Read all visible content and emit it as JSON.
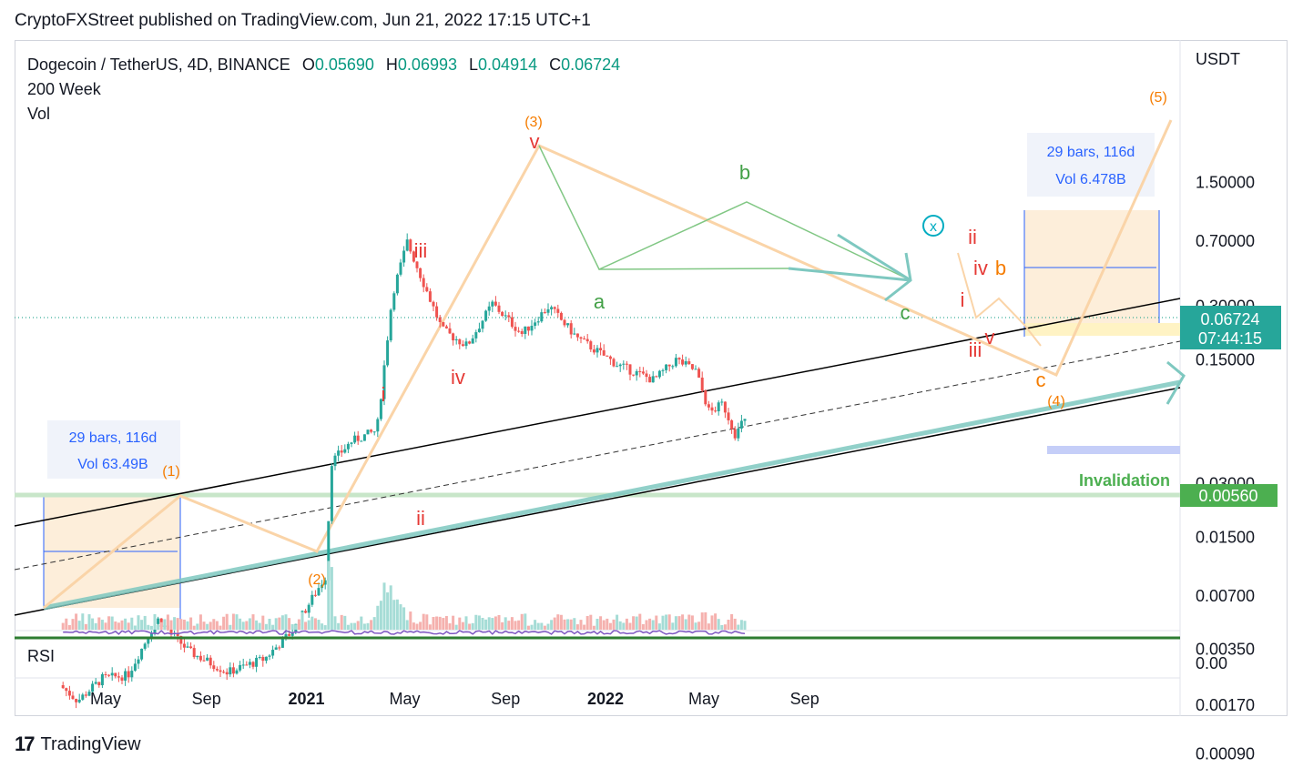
{
  "header": {
    "published": "CryptoFXStreet published on TradingView.com, Jun 21, 2022 17:15 UTC+1"
  },
  "legend": {
    "symbol": "Dogecoin / TetherUS, 4D, BINANCE",
    "open_key": "O",
    "open": "0.05690",
    "high_key": "H",
    "high": "0.06993",
    "low_key": "L",
    "low": "0.04914",
    "close_key": "C",
    "close": "0.06724",
    "ma_label": "200 Week",
    "vol_label": "Vol"
  },
  "rsi_label": "RSI",
  "footer": {
    "brand": "TradingView"
  },
  "chart_data": {
    "type": "candlestick",
    "log_scale": true,
    "currency": "USDT",
    "x_ticks": [
      "May",
      "Sep",
      "2021",
      "May",
      "Sep",
      "2022",
      "May",
      "Sep"
    ],
    "y_ticks": [
      "1.50000",
      "0.70000",
      "0.30000",
      "0.15000",
      "0.03000",
      "0.01500",
      "0.00700",
      "0.00350",
      "0.00170",
      "0.00090"
    ],
    "rsi_tick": "0.00",
    "last_price": "0.06724",
    "countdown": "07:44:15",
    "invalidation_label": "Invalidation",
    "invalidation_price": "0.00560",
    "measure_boxes": [
      {
        "bars": "29 bars, 116d",
        "vol": "Vol 63.49B"
      },
      {
        "bars": "29 bars, 116d",
        "vol": "Vol 6.478B"
      }
    ],
    "wave_labels": {
      "primary": [
        "(1)",
        "(2)",
        "(3)",
        "(4)",
        "(5)"
      ],
      "minor": [
        "i",
        "ii",
        "iii",
        "iv",
        "v"
      ],
      "correction": [
        "a",
        "b",
        "c",
        "x"
      ],
      "late_minor": [
        "i",
        "ii",
        "iii",
        "iv",
        "v",
        "b",
        "c"
      ]
    },
    "price_points": [
      {
        "x": "2020-03-10",
        "y": 0.0022
      },
      {
        "x": "2020-04-01",
        "y": 0.0018
      },
      {
        "x": "2020-05-01",
        "y": 0.0024
      },
      {
        "x": "2020-06-01",
        "y": 0.0025
      },
      {
        "x": "2020-07-07",
        "y": 0.0052
      },
      {
        "x": "2020-08-15",
        "y": 0.0034
      },
      {
        "x": "2020-10-01",
        "y": 0.0026
      },
      {
        "x": "2020-11-15",
        "y": 0.0031
      },
      {
        "x": "2020-12-20",
        "y": 0.0045
      },
      {
        "x": "2021-01-28",
        "y": 0.009
      },
      {
        "x": "2021-02-05",
        "y": 0.04
      },
      {
        "x": "2021-03-01",
        "y": 0.052
      },
      {
        "x": "2021-04-01",
        "y": 0.06
      },
      {
        "x": "2021-04-20",
        "y": 0.35
      },
      {
        "x": "2021-05-08",
        "y": 0.69
      },
      {
        "x": "2021-06-20",
        "y": 0.22
      },
      {
        "x": "2021-07-20",
        "y": 0.18
      },
      {
        "x": "2021-08-20",
        "y": 0.31
      },
      {
        "x": "2021-09-25",
        "y": 0.21
      },
      {
        "x": "2021-10-28",
        "y": 0.3
      },
      {
        "x": "2021-12-01",
        "y": 0.2
      },
      {
        "x": "2022-01-20",
        "y": 0.14
      },
      {
        "x": "2022-03-05",
        "y": 0.115
      },
      {
        "x": "2022-04-01",
        "y": 0.15
      },
      {
        "x": "2022-04-25",
        "y": 0.13
      },
      {
        "x": "2022-05-12",
        "y": 0.075
      },
      {
        "x": "2022-05-28",
        "y": 0.085
      },
      {
        "x": "2022-06-13",
        "y": 0.056
      },
      {
        "x": "2022-06-21",
        "y": 0.06724
      }
    ]
  }
}
